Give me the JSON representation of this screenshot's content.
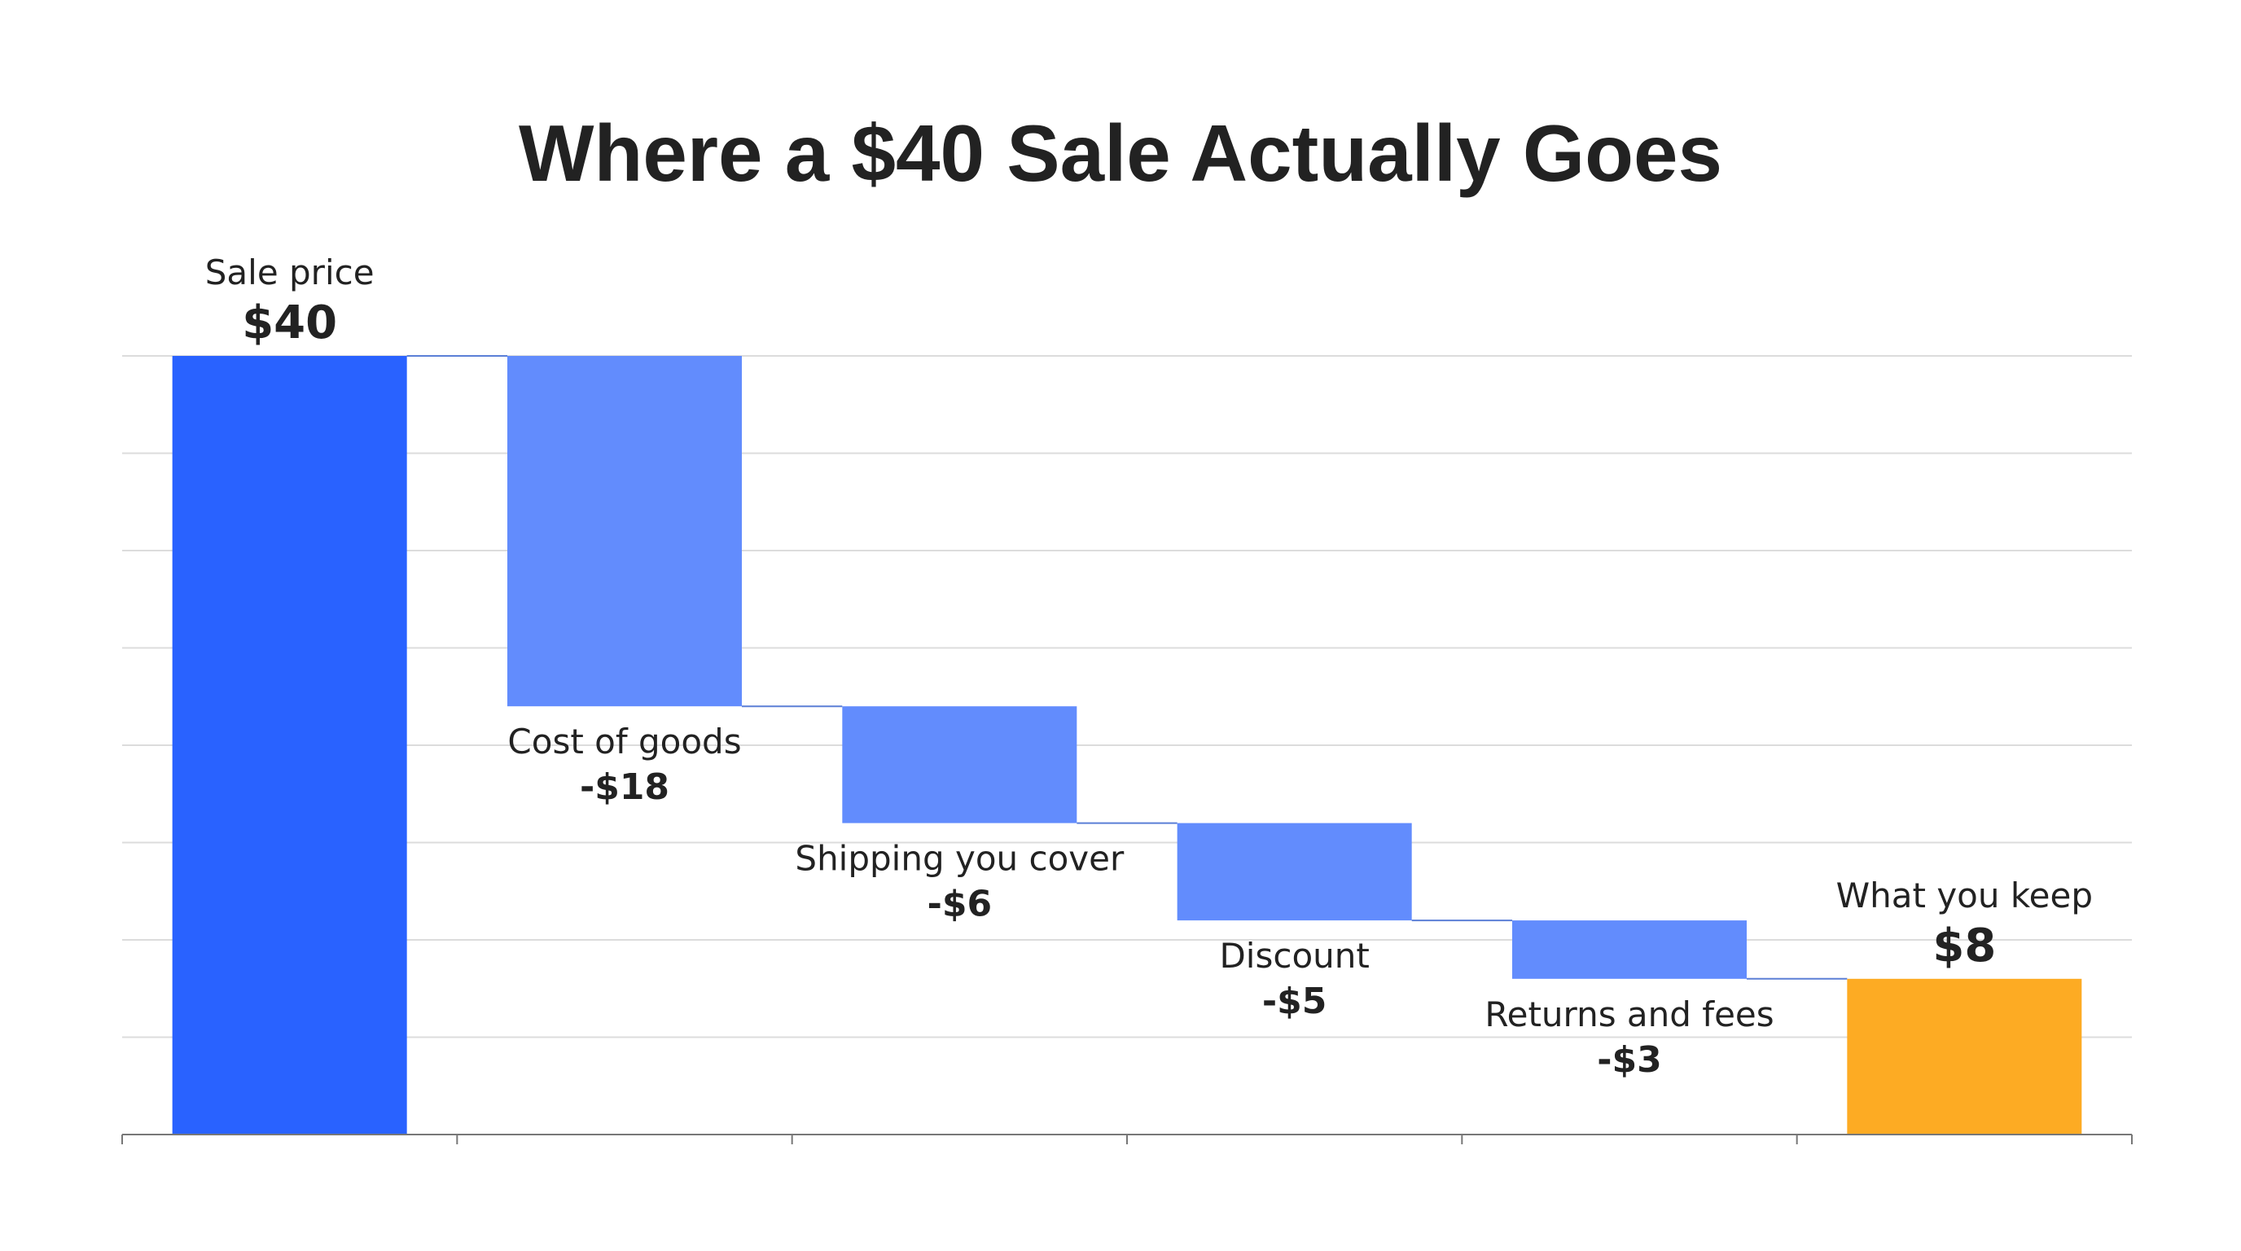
{
  "chart_data": {
    "type": "bar",
    "subtype": "waterfall",
    "title": "Where a $40 Sale Actually Goes",
    "xlabel": "",
    "ylabel": "",
    "ylim": [
      0,
      40
    ],
    "grid": true,
    "legend": "none",
    "steps": [
      {
        "label": "Sale price",
        "value": 40,
        "value_label": "$40",
        "kind": "total"
      },
      {
        "label": "Cost of goods",
        "value": -18,
        "value_label": "-$18",
        "kind": "decrease"
      },
      {
        "label": "Shipping you cover",
        "value": -6,
        "value_label": "-$6",
        "kind": "decrease"
      },
      {
        "label": "Discount",
        "value": -5,
        "value_label": "-$5",
        "kind": "decrease"
      },
      {
        "label": "Returns and fees",
        "value": -3,
        "value_label": "-$3",
        "kind": "decrease"
      },
      {
        "label": "What you keep",
        "value": 8,
        "value_label": "$8",
        "kind": "result"
      }
    ],
    "colors": {
      "total": "#2962ff",
      "decrease": "#628cfd",
      "result": "#fdab23"
    }
  }
}
